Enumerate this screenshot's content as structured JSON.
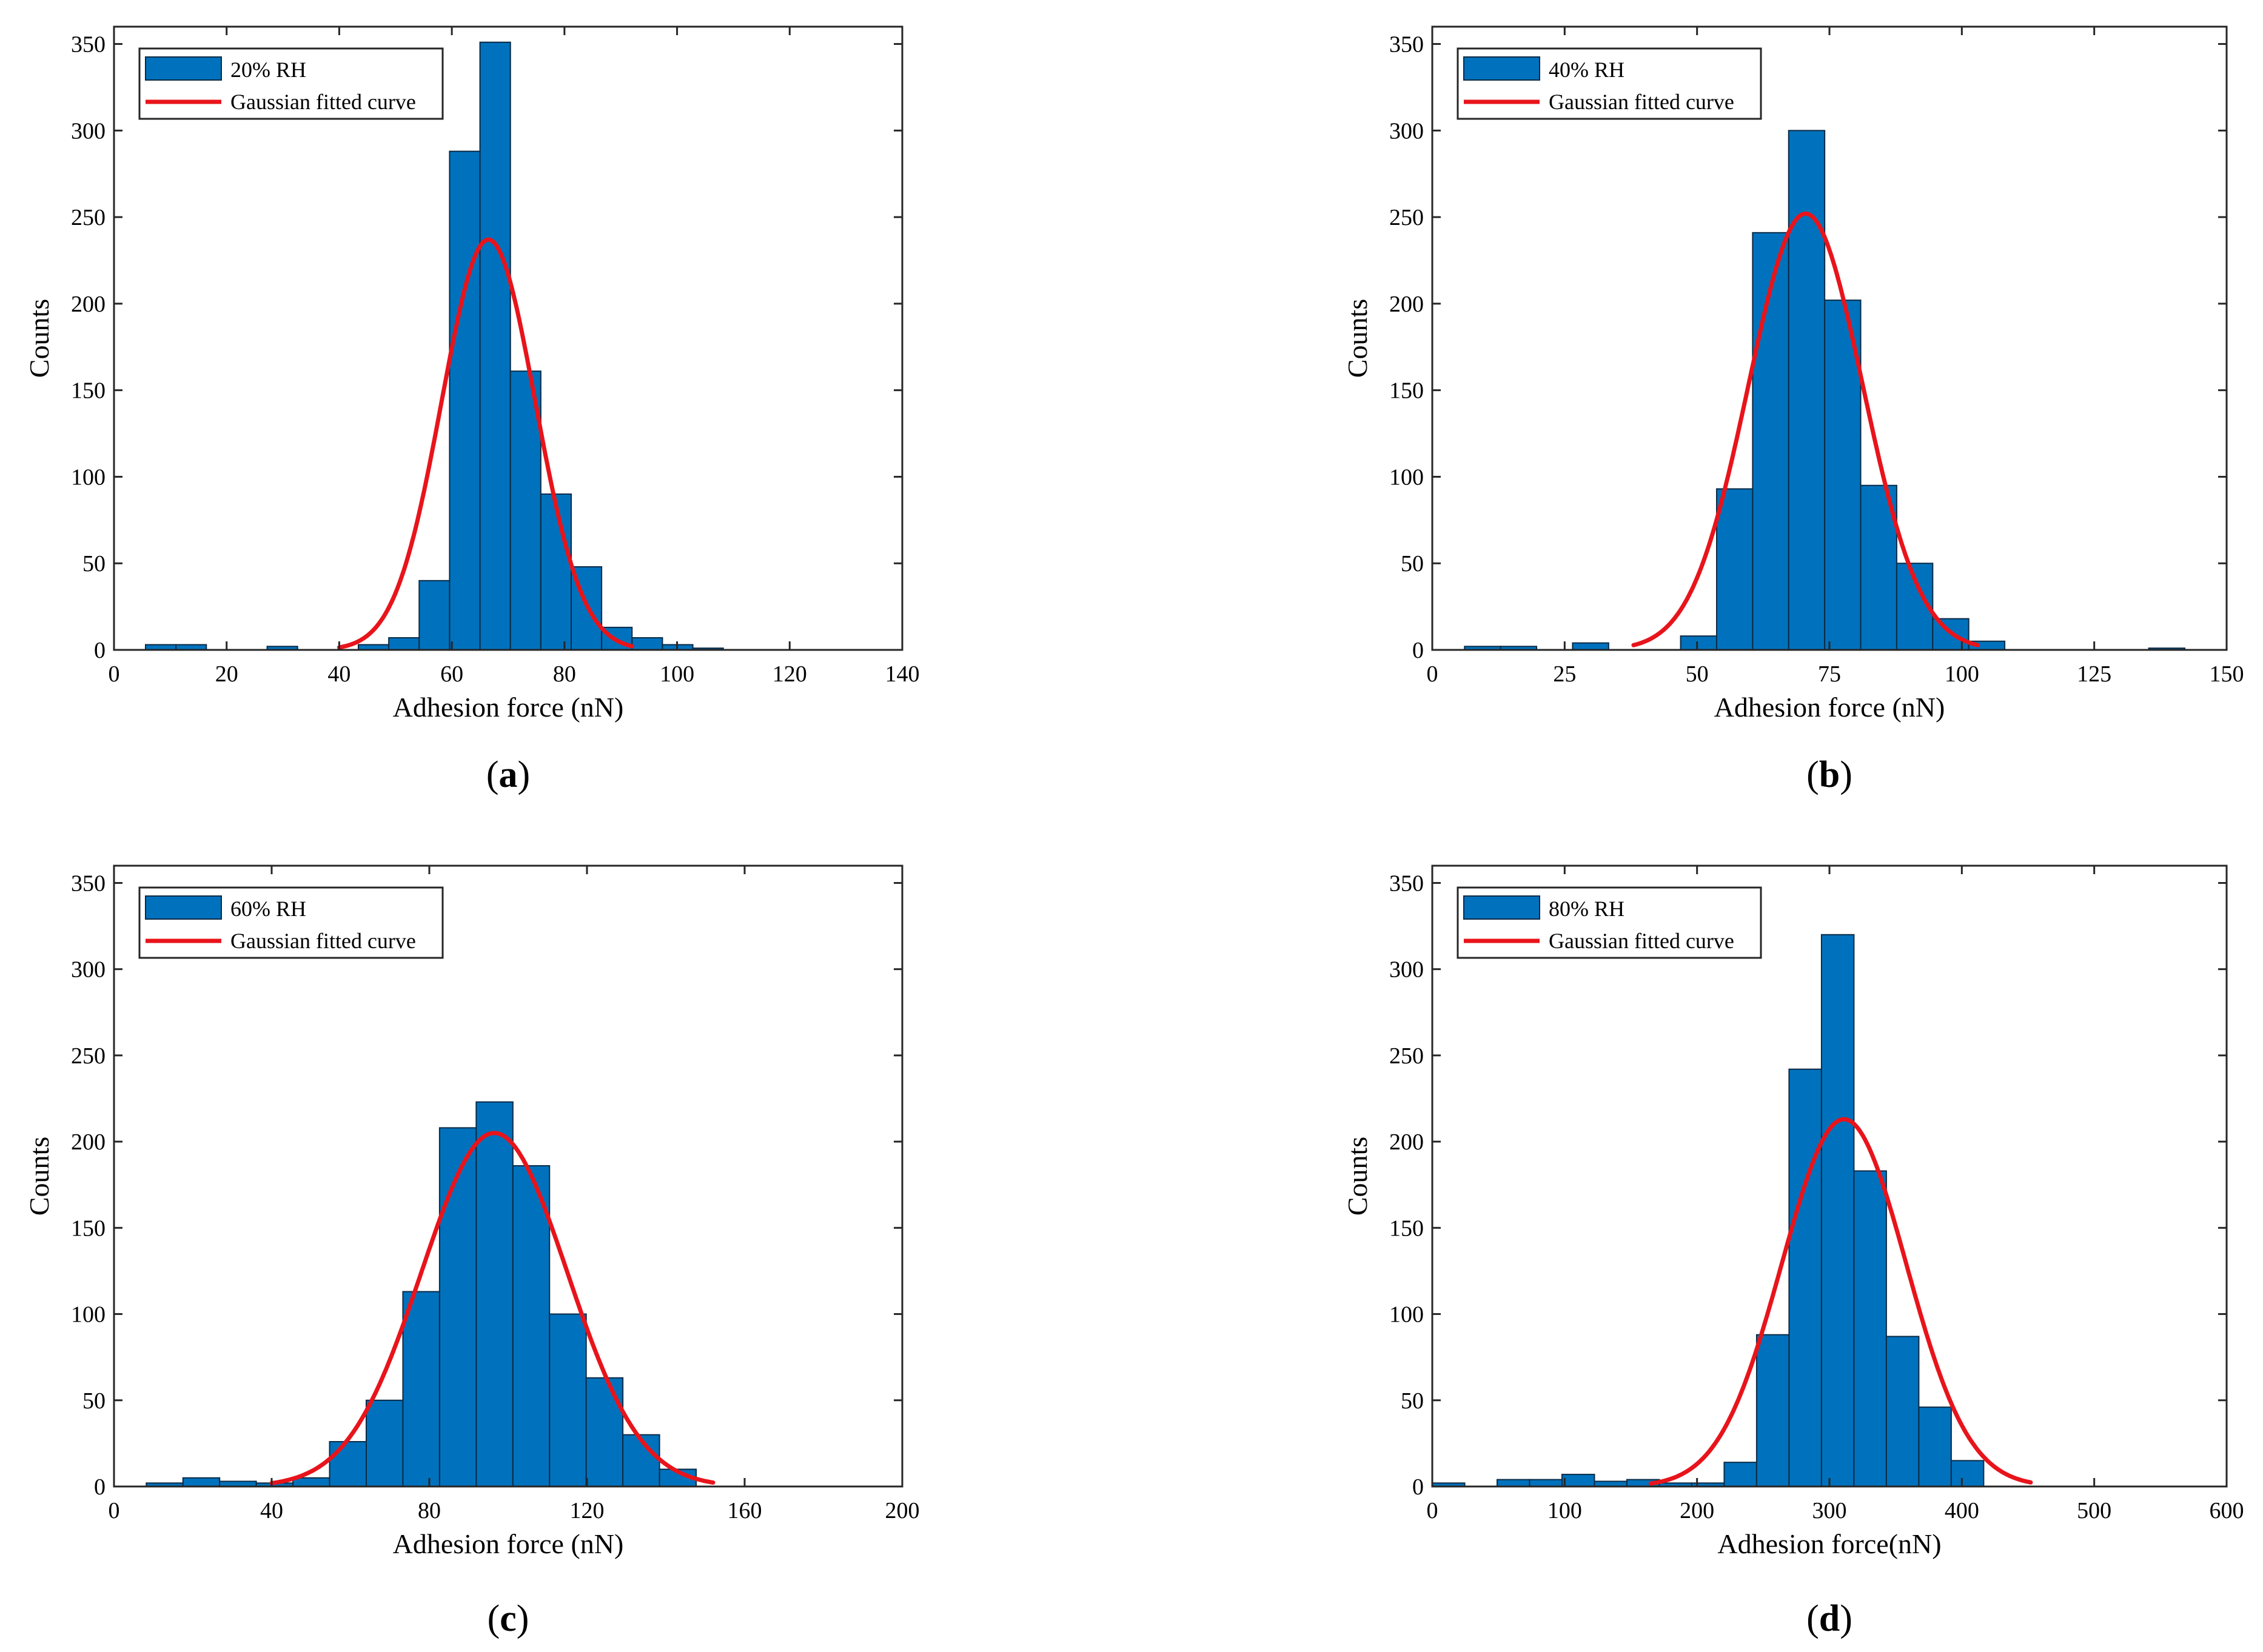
{
  "colors": {
    "bar_fill": "#0072BD",
    "bar_edge": "#0a2a45",
    "fit_curve": "#E8141B",
    "axis": "#262626"
  },
  "chart_data": [
    {
      "type": "bar",
      "panel": "a",
      "panel_label": "a",
      "title": "",
      "xlabel": "Adhesion force (nN)",
      "ylabel": "Counts",
      "xlim": [
        0,
        140
      ],
      "ylim": [
        0,
        360
      ],
      "xticks": [
        0,
        20,
        40,
        60,
        80,
        100,
        120,
        140
      ],
      "yticks": [
        0,
        50,
        100,
        150,
        200,
        250,
        300,
        350
      ],
      "legend_position": "top-left",
      "series": [
        {
          "name": "20% RH",
          "type": "histogram",
          "bin_edges": [
            5.6,
            11.0,
            16.4,
            21.8,
            27.2,
            32.6,
            38.0,
            43.4,
            48.8,
            54.2,
            59.6,
            65.0,
            70.4,
            75.8,
            81.2,
            86.6,
            92.0,
            97.4,
            102.8,
            108.2
          ],
          "counts": [
            3,
            3,
            0,
            0,
            2,
            0,
            0,
            3,
            7,
            40,
            288,
            351,
            161,
            90,
            48,
            13,
            7,
            3,
            1
          ]
        },
        {
          "name": "Gaussian fitted curve",
          "type": "gaussian",
          "amplitude": 237,
          "mean": 66.5,
          "sigma": 8.3,
          "x_range": [
            40,
            92
          ]
        }
      ]
    },
    {
      "type": "bar",
      "panel": "b",
      "panel_label": "b",
      "title": "",
      "xlabel": "Adhesion force (nN)",
      "ylabel": "Counts",
      "xlim": [
        0,
        150
      ],
      "ylim": [
        0,
        360
      ],
      "xticks": [
        0,
        25,
        50,
        75,
        100,
        125,
        150
      ],
      "yticks": [
        0,
        50,
        100,
        150,
        200,
        250,
        300,
        350
      ],
      "legend_position": "top-left",
      "series": [
        {
          "name": "40% RH",
          "type": "histogram",
          "bin_edges": [
            6.1,
            12.9,
            19.7,
            26.5,
            33.3,
            40.1,
            46.9,
            53.7,
            60.5,
            67.3,
            74.1,
            80.9,
            87.7,
            94.5,
            101.3,
            108.1,
            114.9,
            121.7,
            128.5,
            135.3,
            142.1
          ],
          "counts": [
            2,
            2,
            0,
            4,
            0,
            0,
            8,
            93,
            241,
            300,
            202,
            95,
            50,
            18,
            5,
            0,
            0,
            0,
            0,
            1
          ]
        },
        {
          "name": "Gaussian fitted curve",
          "type": "gaussian",
          "amplitude": 252,
          "mean": 70.5,
          "sigma": 10.8,
          "x_range": [
            38,
            103
          ]
        }
      ]
    },
    {
      "type": "bar",
      "panel": "c",
      "panel_label": "c",
      "title": "",
      "xlabel": "Adhesion force (nN)",
      "ylabel": "Counts",
      "xlim": [
        0,
        200
      ],
      "ylim": [
        0,
        360
      ],
      "xticks": [
        0,
        40,
        80,
        120,
        160,
        200
      ],
      "yticks": [
        0,
        50,
        100,
        150,
        200,
        250,
        300,
        350
      ],
      "legend_position": "top-left",
      "series": [
        {
          "name": "60% RH",
          "type": "histogram",
          "bin_edges": [
            8.2,
            17.5,
            26.8,
            36.1,
            45.4,
            54.7,
            64.0,
            73.3,
            82.6,
            91.9,
            101.2,
            110.5,
            119.8,
            129.1,
            138.4,
            147.7
          ],
          "counts": [
            2,
            5,
            3,
            2,
            5,
            26,
            50,
            113,
            208,
            223,
            186,
            100,
            63,
            30,
            10
          ]
        },
        {
          "name": "Gaussian fitted curve",
          "type": "gaussian",
          "amplitude": 205,
          "mean": 96.5,
          "sigma": 18.5,
          "x_range": [
            40,
            152
          ]
        }
      ]
    },
    {
      "type": "bar",
      "panel": "d",
      "panel_label": "d",
      "title": "",
      "xlabel": "Adhesion force(nN)",
      "ylabel": "Counts",
      "xlim": [
        0,
        600
      ],
      "ylim": [
        0,
        360
      ],
      "xticks": [
        0,
        100,
        200,
        300,
        400,
        500,
        600
      ],
      "yticks": [
        0,
        50,
        100,
        150,
        200,
        250,
        300,
        350
      ],
      "legend_position": "top-left",
      "series": [
        {
          "name": "80% RH",
          "type": "histogram",
          "bin_edges": [
            0,
            24.5,
            49,
            73.5,
            98,
            122.5,
            147,
            171.5,
            196,
            220.5,
            245,
            269.5,
            294,
            318.5,
            343,
            367.5,
            392,
            416.5
          ],
          "counts": [
            2,
            0,
            4,
            4,
            7,
            3,
            4,
            2,
            2,
            14,
            88,
            242,
            320,
            183,
            87,
            46,
            15
          ]
        },
        {
          "name": "Gaussian fitted curve",
          "type": "gaussian",
          "amplitude": 213,
          "mean": 311,
          "sigma": 47,
          "x_range": [
            165,
            452
          ]
        }
      ]
    }
  ]
}
